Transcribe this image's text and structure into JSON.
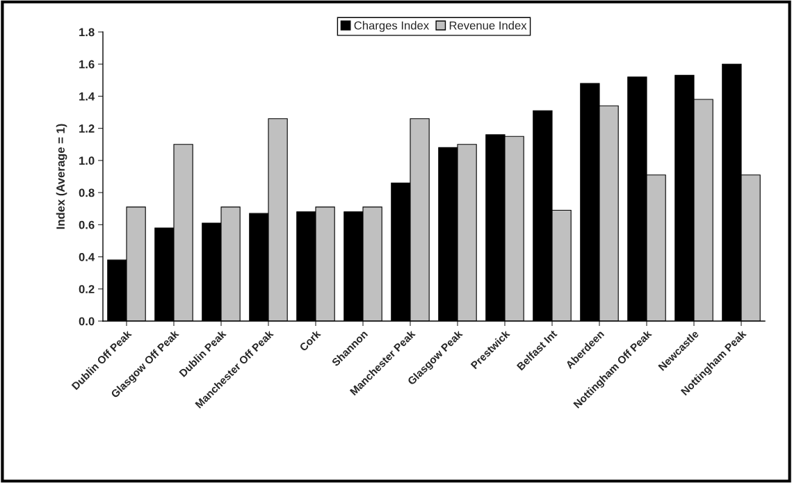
{
  "chart_data": {
    "type": "bar",
    "ylabel": "Index (Average = 1)",
    "categories": [
      "Dublin Off Peak",
      "Glasgow Off Peak",
      "Dublin Peak",
      "Manchester Off Peak",
      "Cork",
      "Shannon",
      "Manchester Peak",
      "Glasgow Peak",
      "Prestwick",
      "Belfast Int",
      "Aberdeen",
      "Nottingham Off Peak",
      "Newcastle",
      "Nottingham Peak"
    ],
    "series": [
      {
        "name": "Charges Index",
        "color": "#000000",
        "values": [
          0.38,
          0.58,
          0.61,
          0.67,
          0.68,
          0.68,
          0.86,
          1.08,
          1.16,
          1.31,
          1.48,
          1.52,
          1.53,
          1.6
        ]
      },
      {
        "name": "Revenue Index",
        "color": "#c0c0c0",
        "values": [
          0.71,
          1.1,
          0.71,
          1.26,
          0.71,
          0.71,
          1.26,
          1.1,
          1.15,
          0.69,
          1.34,
          0.91,
          1.38,
          0.91
        ]
      }
    ],
    "ylim": [
      0,
      1.8
    ],
    "yticks": [
      {
        "value": 0,
        "label": "0.0"
      },
      {
        "value": 0.2,
        "label": "0.2"
      },
      {
        "value": 0.4,
        "label": "0.4"
      },
      {
        "value": 0.6,
        "label": "0.6"
      },
      {
        "value": 0.8,
        "label": "0.8"
      },
      {
        "value": 1.0,
        "label": "1.0"
      },
      {
        "value": 1.2,
        "label": "1.2"
      },
      {
        "value": 1.4,
        "label": "1.4"
      },
      {
        "value": 1.6,
        "label": "1.6"
      },
      {
        "value": 1.8,
        "label": "1.8"
      }
    ],
    "grid": false,
    "legend": "top"
  }
}
